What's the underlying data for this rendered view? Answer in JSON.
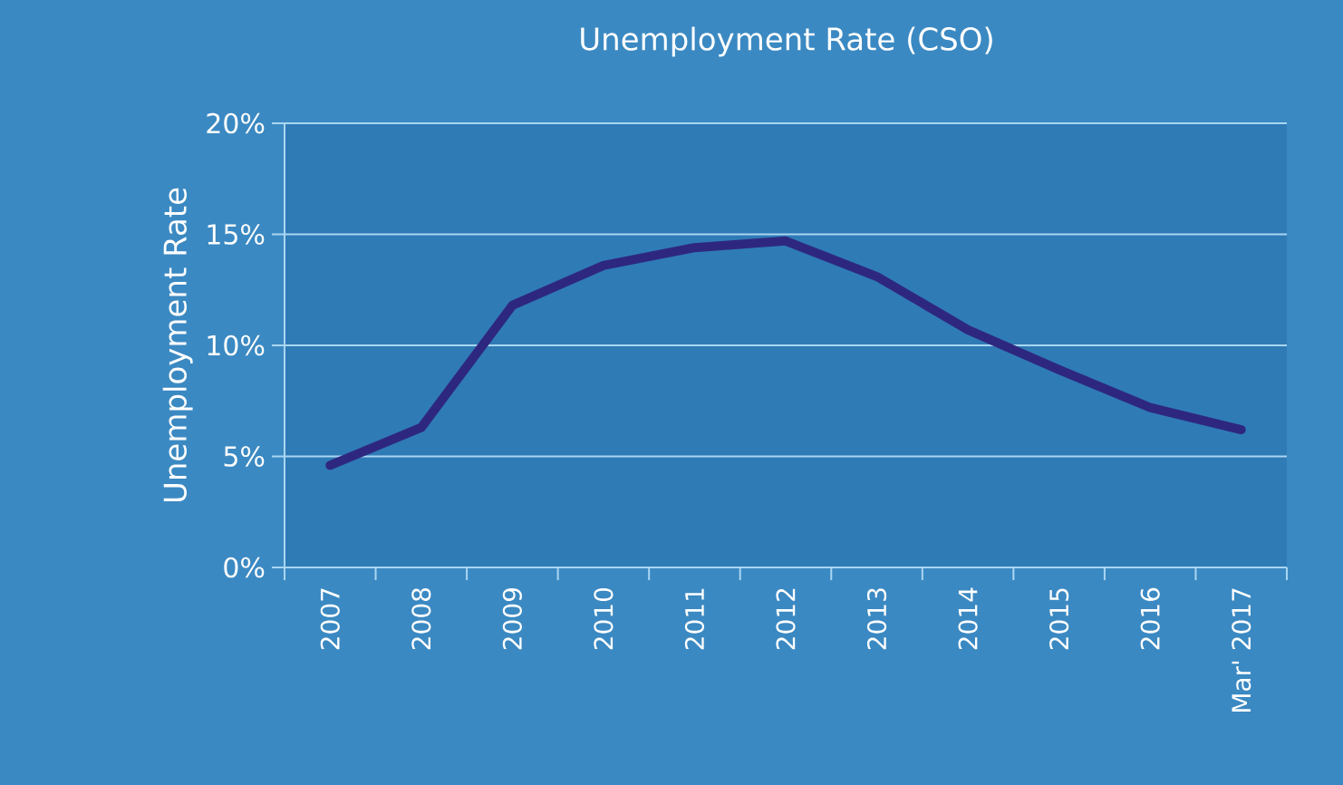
{
  "chart_data": {
    "type": "line",
    "title": "Unemployment Rate (CSO)",
    "ylabel": "Unemployment Rate",
    "categories": [
      "2007",
      "2008",
      "2009",
      "2010",
      "2011",
      "2012",
      "2013",
      "2014",
      "2015",
      "2016",
      "Mar' 2017"
    ],
    "series": [
      {
        "color": "#2e2780",
        "values": [
          4.6,
          6.3,
          11.8,
          13.6,
          14.4,
          14.7,
          13.1,
          10.7,
          8.9,
          7.2,
          6.2
        ]
      }
    ],
    "ylim": [
      0,
      20
    ],
    "yticks": [
      {
        "value": 0,
        "label": "0%"
      },
      {
        "value": 5,
        "label": "5%"
      },
      {
        "value": 10,
        "label": "10%"
      },
      {
        "value": 15,
        "label": "15%"
      },
      {
        "value": 20,
        "label": "20%"
      }
    ],
    "grid": "y",
    "marker": "none",
    "line_style": "solid"
  }
}
